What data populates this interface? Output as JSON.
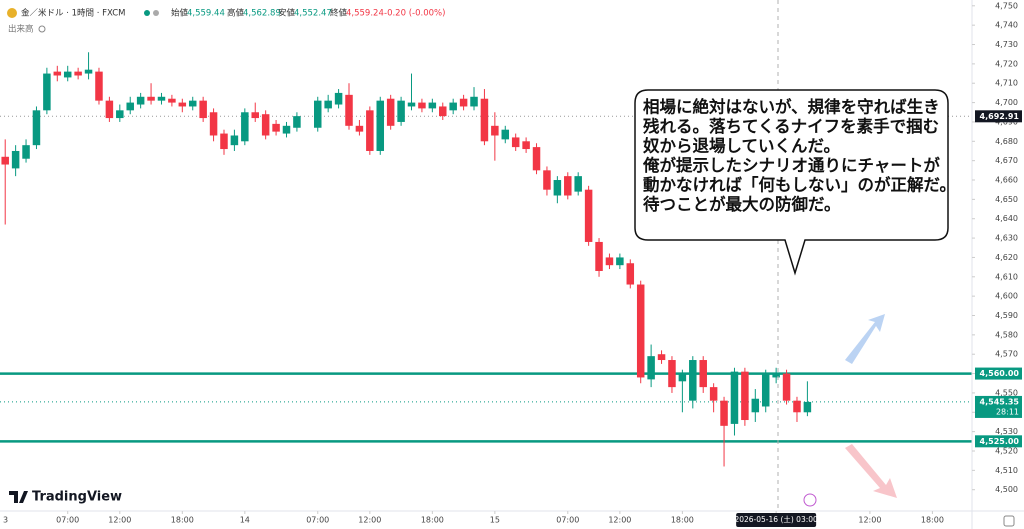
{
  "header": {
    "symbol": "金／米ドル · 1時間 · FXCM",
    "open_label": "始値",
    "open": "4,559.44",
    "high_label": "高値",
    "high": "4,562.89",
    "low_label": "安値",
    "low": "4,552.47",
    "close_label": "終値",
    "close": "4,559.24",
    "change": "-0.20 (-0.00%)",
    "volume_label": "出来高"
  },
  "bubble": {
    "lines": [
      "相場に絶対はないが、規律を守れば生き",
      "残れる。落ちてくるナイフを素手で掴む",
      "奴から退場していくんだ。",
      "俺が提示したシナリオ通りにチャートが",
      "動かなければ「何もしない」のが正解だ。",
      "待つことが最大の防御だ。"
    ]
  },
  "brand": "TradingView",
  "chart_data": {
    "type": "candlestick",
    "up_color": "#089981",
    "down_color": "#f23645",
    "x": [
      1,
      2,
      3,
      4,
      5,
      6,
      7,
      8,
      9,
      10,
      11,
      12,
      13,
      14,
      15,
      16,
      17,
      18,
      19,
      20,
      21,
      22,
      23,
      24,
      25,
      26,
      27,
      28,
      29,
      31,
      32,
      33,
      34,
      35,
      36,
      37,
      38,
      39,
      40,
      41,
      42,
      43,
      44,
      45,
      46,
      47,
      48,
      49,
      50,
      51,
      52,
      53,
      54,
      55,
      56,
      57,
      58,
      59,
      60,
      61,
      62,
      63,
      64,
      65,
      66,
      67,
      68,
      69,
      70,
      71,
      72,
      73,
      74,
      75,
      76,
      77,
      78
    ],
    "open": [
      4672,
      4666,
      4671,
      4678,
      4696,
      4716,
      4713,
      4716,
      4715,
      4716,
      4701,
      4692,
      4696,
      4699,
      4703,
      4701,
      4702,
      4700,
      4698,
      4701,
      4695,
      4684,
      4678,
      4680,
      4695,
      4694,
      4689,
      4684,
      4687,
      4687,
      4697,
      4699,
      4704,
      4688,
      4696,
      4675,
      4702,
      4690,
      4698,
      4700,
      4697,
      4698,
      4696,
      4702,
      4698,
      4702,
      4688,
      4681,
      4682,
      4680,
      4677,
      4665,
      4652,
      4662,
      4654,
      4655,
      4628,
      4620,
      4616,
      4617,
      4606,
      4557,
      4570,
      4567,
      4556,
      4546,
      4567,
      4553,
      4546,
      4534,
      4561,
      4540,
      4543,
      4558,
      4560,
      4546,
      4540
    ],
    "high": [
      4681,
      4678,
      4681,
      4698,
      4718,
      4719,
      4719,
      4718,
      4726,
      4718,
      4703,
      4699,
      4703,
      4705,
      4710,
      4705,
      4704,
      4702,
      4703,
      4703,
      4697,
      4686,
      4686,
      4697,
      4700,
      4696,
      4691,
      4690,
      4695,
      4703,
      4704,
      4707,
      4710,
      4691,
      4698,
      4703,
      4704,
      4703,
      4715,
      4702,
      4702,
      4700,
      4702,
      4704,
      4708,
      4707,
      4695,
      4688,
      4684,
      4682,
      4679,
      4667,
      4662,
      4664,
      4664,
      4657,
      4630,
      4622,
      4622,
      4619,
      4608,
      4575,
      4572,
      4569,
      4562,
      4569,
      4569,
      4555,
      4548,
      4563,
      4563,
      4552,
      4562,
      4563,
      4562,
      4548,
      4556
    ],
    "low": [
      4637,
      4662,
      4669,
      4676,
      4694,
      4711,
      4711,
      4712,
      4712,
      4699,
      4690,
      4690,
      4694,
      4697,
      4699,
      4699,
      4698,
      4695,
      4696,
      4690,
      4680,
      4673,
      4675,
      4678,
      4690,
      4681,
      4683,
      4682,
      4685,
      4685,
      4695,
      4697,
      4686,
      4683,
      4673,
      4673,
      4686,
      4688,
      4696,
      4695,
      4695,
      4691,
      4694,
      4696,
      4696,
      4678,
      4670,
      4679,
      4675,
      4674,
      4663,
      4652,
      4648,
      4650,
      4652,
      4626,
      4610,
      4614,
      4614,
      4604,
      4555,
      4553,
      4565,
      4550,
      4540,
      4542,
      4550,
      4540,
      4512,
      4528,
      4533,
      4535,
      4540,
      4555,
      4544,
      4535,
      4538
    ],
    "close": [
      4668,
      4675,
      4678,
      4696,
      4715,
      4714,
      4716,
      4714,
      4717,
      4701,
      4692,
      4696,
      4700,
      4703,
      4701,
      4703,
      4700,
      4698,
      4701,
      4692,
      4683,
      4676,
      4683,
      4695,
      4692,
      4683,
      4685,
      4688,
      4693,
      4701,
      4701,
      4705,
      4688,
      4685,
      4675,
      4701,
      4688,
      4701,
      4700,
      4697,
      4700,
      4693,
      4700,
      4698,
      4703,
      4680,
      4683,
      4686,
      4677,
      4676,
      4665,
      4655,
      4660,
      4652,
      4662,
      4628,
      4613,
      4616,
      4620,
      4606,
      4558,
      4569,
      4567,
      4553,
      4560,
      4567,
      4553,
      4546,
      4533,
      4561,
      4536,
      4547,
      4560,
      4560,
      4546,
      4540,
      4545.35
    ],
    "xlim": [
      0.5,
      93.8
    ],
    "xticks": [
      {
        "value": 0,
        "label": "3"
      },
      {
        "value": 7,
        "label": "07:00"
      },
      {
        "value": 12,
        "label": "12:00"
      },
      {
        "value": 18,
        "label": "18:00"
      },
      {
        "value": 24,
        "label": "14"
      },
      {
        "value": 31,
        "label": "07:00"
      },
      {
        "value": 36,
        "label": "12:00"
      },
      {
        "value": 42,
        "label": "18:00"
      },
      {
        "value": 48,
        "label": "15"
      },
      {
        "value": 55,
        "label": "07:00"
      },
      {
        "value": 60,
        "label": "12:00"
      },
      {
        "value": 66,
        "label": "18:00"
      },
      {
        "value": 75,
        "label": "2026-05-16 (土) 03:00"
      },
      {
        "value": 84,
        "label": "12:00"
      },
      {
        "value": 90,
        "label": "18:00"
      }
    ],
    "ylim": [
      4489,
      4753
    ],
    "yticks": [
      {
        "value": 4750,
        "label": "4,750"
      },
      {
        "value": 4740,
        "label": "4,740"
      },
      {
        "value": 4730,
        "label": "4,730"
      },
      {
        "value": 4720,
        "label": "4,720"
      },
      {
        "value": 4710,
        "label": "4,710"
      },
      {
        "value": 4700,
        "label": "4,700"
      },
      {
        "value": 4690,
        "label": "4,690"
      },
      {
        "value": 4680,
        "label": "4,680"
      },
      {
        "value": 4670,
        "label": "4,670"
      },
      {
        "value": 4660,
        "label": "4,660"
      },
      {
        "value": 4650,
        "label": "4,650"
      },
      {
        "value": 4640,
        "label": "4,640"
      },
      {
        "value": 4630,
        "label": "4,630"
      },
      {
        "value": 4620,
        "label": "4,620"
      },
      {
        "value": 4610,
        "label": "4,610"
      },
      {
        "value": 4600,
        "label": "4,600"
      },
      {
        "value": 4590,
        "label": "4,590"
      },
      {
        "value": 4580,
        "label": "4,580"
      },
      {
        "value": 4570,
        "label": "4,570"
      },
      {
        "value": 4560,
        "label": "4,560"
      },
      {
        "value": 4550,
        "label": "4,550"
      },
      {
        "value": 4540,
        "label": "4,540"
      },
      {
        "value": 4530,
        "label": "4,530"
      },
      {
        "value": 4520,
        "label": "4,520"
      },
      {
        "value": 4510,
        "label": "4,510"
      },
      {
        "value": 4500,
        "label": "4,500"
      }
    ],
    "hlines": [
      {
        "value": 4560,
        "label": "4,560.00"
      },
      {
        "value": 4525,
        "label": "4,525.00"
      }
    ],
    "hline_color": "#089981",
    "reference": {
      "value": 4692.91,
      "label": "4,692.91"
    },
    "last_price": {
      "value": 4545.35,
      "label": "4,545.35",
      "countdown": "28:11"
    }
  }
}
